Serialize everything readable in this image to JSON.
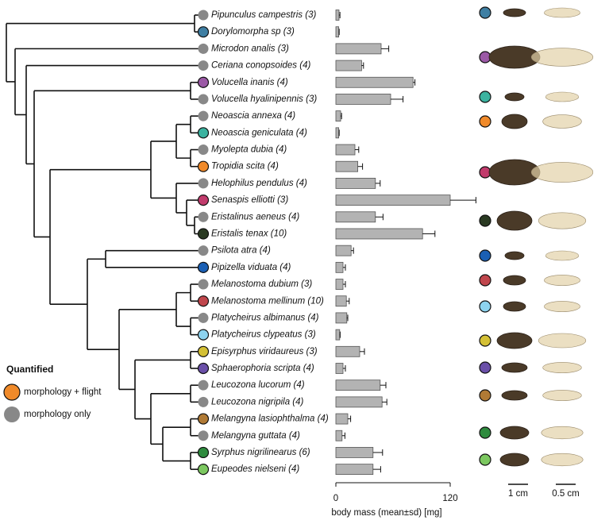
{
  "chart_data": {
    "type": "bar",
    "orientation": "horizontal",
    "categories": [
      "Pipunculus campestris (3)",
      "Dorylomorpha sp (3)",
      "Microdon analis (3)",
      "Ceriana conopsoides (4)",
      "Volucella inanis (4)",
      "Volucella hyalinipennis (3)",
      "Neoascia annexa (4)",
      "Neoascia geniculata (4)",
      "Myolepta dubia (4)",
      "Tropidia scita (4)",
      "Helophilus pendulus (4)",
      "Senaspis elliotti (3)",
      "Eristalinus aeneus (4)",
      "Eristalis tenax (10)",
      "Psilota atra (4)",
      "Pipizella viduata (4)",
      "Melanostoma dubium (3)",
      "Melanostoma mellinum (10)",
      "Platycheirus albimanus (4)",
      "Platycheirus clypeatus (3)",
      "Episyrphus viridaureus (3)",
      "Sphaerophoria scripta (4)",
      "Leucozona lucorum (4)",
      "Leucozona nigripila (4)",
      "Melangyna lasiophthalma (4)",
      "Melangyna guttata (4)",
      "Syrphus nigrilinearus (6)",
      "Eupeodes nielseni (4)"
    ],
    "values": [
      3.3,
      3,
      47.5,
      27,
      81,
      57.5,
      5,
      3,
      20,
      23,
      41.5,
      120,
      41.5,
      91,
      16,
      7.5,
      7.5,
      11,
      11.5,
      4,
      25,
      7.5,
      46.5,
      48.5,
      12.5,
      6.5,
      39,
      39
    ],
    "errors": [
      1,
      0.5,
      8,
      2,
      2,
      13,
      1,
      0.5,
      4,
      5,
      5,
      27,
      8,
      13,
      2.5,
      2.5,
      2.5,
      3,
      1,
      0.5,
      5,
      2.5,
      6,
      5,
      3,
      3,
      10,
      8
    ],
    "color": "#b3b3b3",
    "marker_colors": [
      "#888888",
      "#3f7fa3",
      "#888888",
      "#888888",
      "#9b59a6",
      "#888888",
      "#888888",
      "#3bb3a0",
      "#888888",
      "#f08a2a",
      "#888888",
      "#c13b6c",
      "#888888",
      "#2a3a22",
      "#888888",
      "#1a5fb4",
      "#888888",
      "#c0464c",
      "#888888",
      "#8dd3ef",
      "#d4c035",
      "#6a4fa8",
      "#888888",
      "#888888",
      "#b07a35",
      "#888888",
      "#2e8b3e",
      "#7cc860"
    ],
    "xlabel": "body mass (mean±sd) [mg]",
    "xlim": [
      0,
      120
    ],
    "xticks": [
      0,
      120
    ],
    "legend": {
      "title": "Quantified",
      "entries": [
        {
          "label": "morphology + flight",
          "color": "#f08a2a"
        },
        {
          "label": "morphology only",
          "color": "#888888"
        }
      ]
    }
  },
  "scale_bars": [
    {
      "label": "1 cm"
    },
    {
      "label": "0.5 cm"
    }
  ]
}
